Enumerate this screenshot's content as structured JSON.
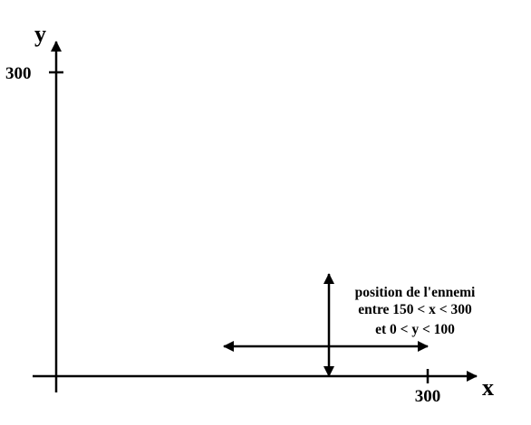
{
  "axes": {
    "x_label": "x",
    "y_label": "y",
    "x_tick_label": "300",
    "y_tick_label": "300"
  },
  "annotation": {
    "line1": "position de l'ennemi",
    "line2": "entre 150 < x < 300",
    "line3": "et 0 < y < 100"
  },
  "colors": {
    "ink": "#000000",
    "background": "#ffffff"
  }
}
